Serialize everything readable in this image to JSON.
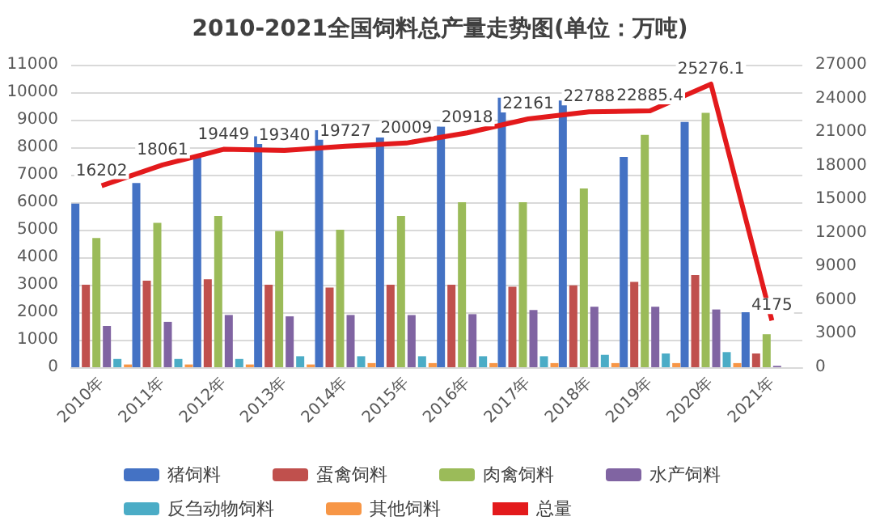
{
  "chart_data": {
    "type": "bar",
    "title": "2010-2021全国饲料总产量走势图(单位：万吨)",
    "categories": [
      "2010年",
      "2011年",
      "2012年",
      "2013年",
      "2014年",
      "2015年",
      "2016年",
      "2017年",
      "2018年",
      "2019年",
      "2020年",
      "2021年"
    ],
    "series": [
      {
        "name": "猪饲料",
        "color": "#4472c4",
        "values": [
          5950,
          6700,
          7700,
          8400,
          8620,
          8350,
          8750,
          9800,
          9700,
          7650,
          8920,
          2000
        ]
      },
      {
        "name": "蛋禽饲料",
        "color": "#c0504d",
        "values": [
          3000,
          3150,
          3200,
          3000,
          2900,
          3000,
          3000,
          2930,
          2980,
          3100,
          3350,
          500
        ]
      },
      {
        "name": "肉禽饲料",
        "color": "#9bbb59",
        "values": [
          4700,
          5250,
          5500,
          4950,
          5000,
          5500,
          6000,
          6000,
          6500,
          8450,
          9250,
          1200
        ]
      },
      {
        "name": "水产饲料",
        "color": "#8064a2",
        "values": [
          1500,
          1650,
          1900,
          1850,
          1900,
          1900,
          1930,
          2080,
          2200,
          2200,
          2100,
          50
        ]
      },
      {
        "name": "反刍动物饲料",
        "color": "#4bacc6",
        "values": [
          300,
          300,
          300,
          400,
          400,
          400,
          400,
          400,
          450,
          500,
          550,
          0
        ]
      },
      {
        "name": "其他饲料",
        "color": "#f79646",
        "values": [
          100,
          100,
          100,
          100,
          150,
          150,
          150,
          150,
          150,
          150,
          150,
          0
        ]
      },
      {
        "name": "总量",
        "type": "line",
        "axis": "y2",
        "color": "#e31a1c",
        "values": [
          16202,
          18061,
          19449,
          19340,
          19727,
          20009,
          20918,
          22161,
          22788,
          22885.4,
          25276.1,
          4175
        ],
        "value_labels": [
          "16202",
          "18061",
          "19449",
          "19340",
          "19727",
          "20009",
          "20918",
          "22161",
          "22788",
          "22885.4",
          "25276.1",
          "4175"
        ]
      }
    ],
    "ylim": [
      0,
      11000
    ],
    "yticks": [
      0,
      1000,
      2000,
      3000,
      4000,
      5000,
      6000,
      7000,
      8000,
      9000,
      10000,
      11000
    ],
    "y2lim": [
      0,
      27000
    ],
    "y2ticks": [
      0,
      3000,
      6000,
      9000,
      12000,
      15000,
      18000,
      21000,
      24000,
      27000
    ],
    "grid": "y",
    "legend": "bottom",
    "marker": "none"
  }
}
